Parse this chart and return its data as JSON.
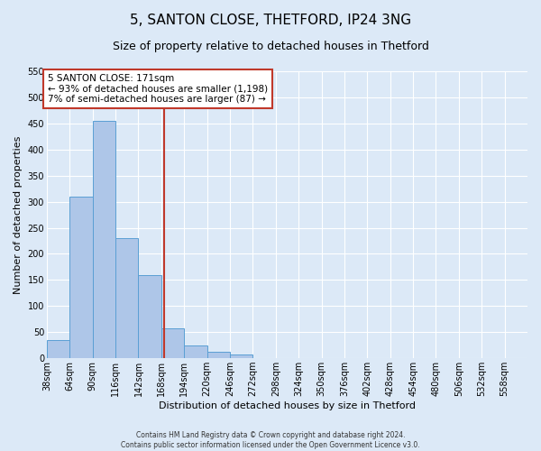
{
  "title": "5, SANTON CLOSE, THETFORD, IP24 3NG",
  "subtitle": "Size of property relative to detached houses in Thetford",
  "xlabel": "Distribution of detached houses by size in Thetford",
  "ylabel": "Number of detached properties",
  "bin_edges": [
    38,
    64,
    90,
    116,
    142,
    168,
    194,
    220,
    246,
    272,
    298,
    324,
    350,
    376,
    402,
    428,
    454,
    480,
    506,
    532,
    558,
    584
  ],
  "bar_heights": [
    35,
    310,
    455,
    230,
    160,
    57,
    25,
    12,
    8,
    1,
    0,
    1,
    1,
    0,
    0,
    1,
    0,
    0,
    0,
    1,
    1
  ],
  "bar_color": "#aec6e8",
  "bar_edge_color": "#5a9fd4",
  "property_size": 171,
  "vline_color": "#c0392b",
  "ylim": [
    0,
    550
  ],
  "annotation_line1": "5 SANTON CLOSE: 171sqm",
  "annotation_line2": "← 93% of detached houses are smaller (1,198)",
  "annotation_line3": "7% of semi-detached houses are larger (87) →",
  "annotation_box_color": "#ffffff",
  "annotation_box_edge_color": "#c0392b",
  "footer_text": "Contains HM Land Registry data © Crown copyright and database right 2024.\nContains public sector information licensed under the Open Government Licence v3.0.",
  "background_color": "#dce9f7",
  "plot_bg_color": "#dce9f7",
  "grid_color": "#ffffff",
  "title_fontsize": 11,
  "subtitle_fontsize": 9,
  "tick_fontsize": 7,
  "ylabel_fontsize": 8,
  "xlabel_fontsize": 8,
  "annotation_fontsize": 7.5,
  "footer_fontsize": 5.5,
  "yticks": [
    0,
    50,
    100,
    150,
    200,
    250,
    300,
    350,
    400,
    450,
    500,
    550
  ]
}
